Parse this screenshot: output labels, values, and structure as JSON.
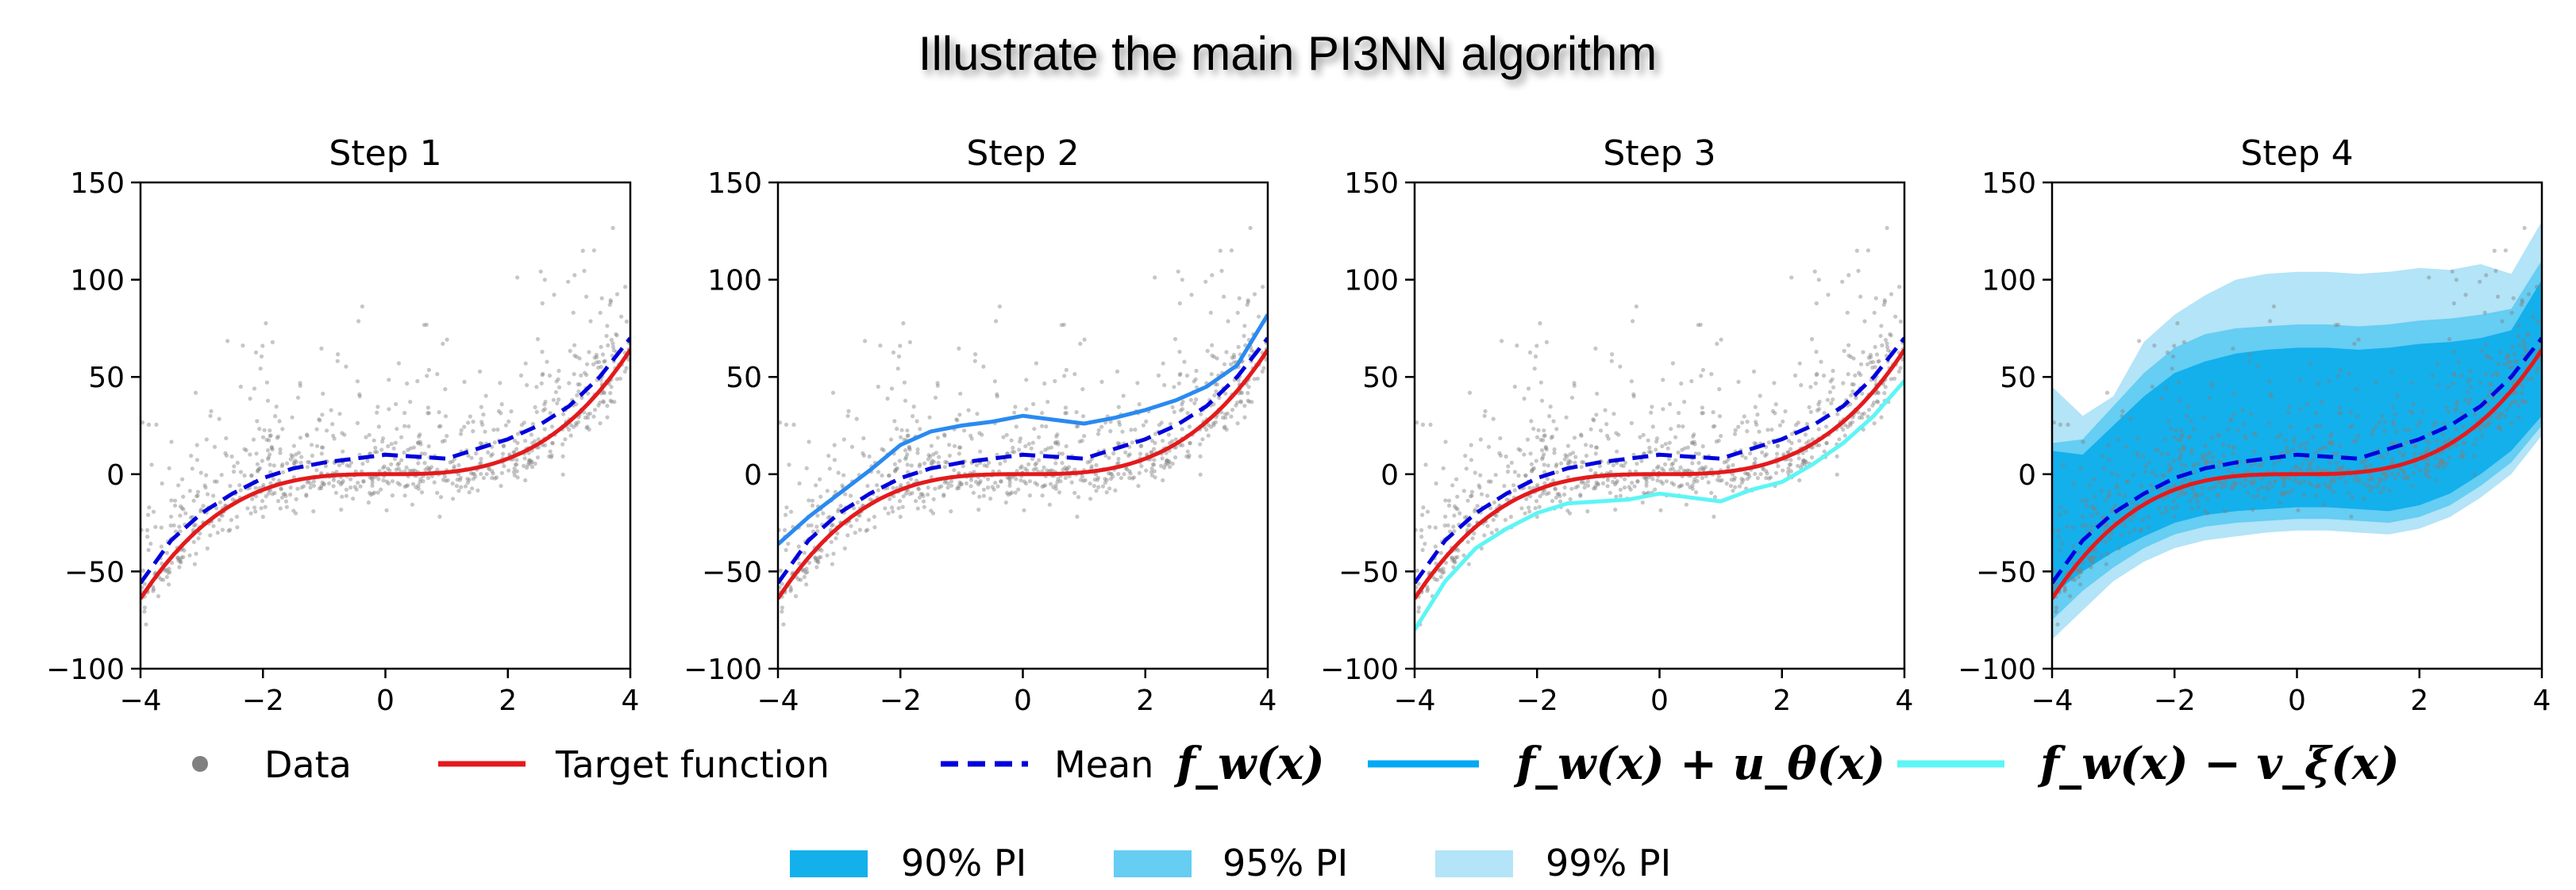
{
  "title": "Illustrate the main PI3NN algorithm",
  "colors": {
    "data": "#808080",
    "target": "#e41a1c",
    "mean": "#0000dd",
    "upper": "#2a8af0",
    "upper_legend": "#03a9f4",
    "lower": "#5ef5f5",
    "pi90": "#13b0ec",
    "pi95": "#66cdf3",
    "pi99": "#b3e4f7"
  },
  "legend": {
    "data": "Data",
    "target": "Target function",
    "mean_prefix": "Mean",
    "mean_math": "f_w(x)",
    "upper_math": "f_w(x) + u_θ(x)",
    "lower_math": "f_w(x) − v_ξ(x)",
    "pi90": "90% PI",
    "pi95": "95% PI",
    "pi99": "99% PI"
  },
  "chart_data": [
    {
      "type": "line",
      "title": "Step 1",
      "xlim": [
        -4,
        4
      ],
      "ylim": [
        -100,
        150
      ],
      "xticks": [
        "−4",
        "−2",
        "0",
        "2",
        "4"
      ],
      "yticks": [
        "−100",
        "−50",
        "0",
        "50",
        "100",
        "150"
      ],
      "x": [
        -4,
        -3.5,
        -3,
        -2.5,
        -2,
        -1.5,
        -1,
        -0.5,
        0,
        0.5,
        1,
        1.5,
        2,
        2.5,
        3,
        3.5,
        4
      ],
      "series": [
        {
          "key": "target",
          "values": [
            -64,
            -43,
            -27,
            -16,
            -8,
            -3,
            -1,
            0,
            0,
            0,
            1,
            3,
            8,
            16,
            27,
            43,
            64
          ]
        },
        {
          "key": "mean",
          "values": [
            -56,
            -34,
            -20,
            -10,
            -2,
            3,
            6,
            8,
            10,
            9,
            8,
            13,
            18,
            25,
            35,
            50,
            70
          ]
        }
      ],
      "scatter": true
    },
    {
      "type": "line",
      "title": "Step 2",
      "xlim": [
        -4,
        4
      ],
      "ylim": [
        -100,
        150
      ],
      "xticks": [
        "−4",
        "−2",
        "0",
        "2",
        "4"
      ],
      "yticks": [
        "−100",
        "−50",
        "0",
        "50",
        "100",
        "150"
      ],
      "x": [
        -4,
        -3.5,
        -3,
        -2.5,
        -2,
        -1.5,
        -1,
        -0.5,
        0,
        0.5,
        1,
        1.5,
        2,
        2.5,
        3,
        3.5,
        4
      ],
      "series": [
        {
          "key": "target",
          "values": [
            -64,
            -43,
            -27,
            -16,
            -8,
            -3,
            -1,
            0,
            0,
            0,
            1,
            3,
            8,
            16,
            27,
            43,
            64
          ]
        },
        {
          "key": "mean",
          "values": [
            -56,
            -34,
            -20,
            -10,
            -2,
            3,
            6,
            8,
            10,
            9,
            8,
            13,
            18,
            25,
            35,
            50,
            70
          ]
        },
        {
          "key": "upper",
          "values": [
            -36,
            -22,
            -10,
            2,
            15,
            22,
            25,
            27,
            30,
            28,
            26,
            29,
            33,
            38,
            45,
            56,
            82
          ]
        }
      ],
      "scatter": true
    },
    {
      "type": "line",
      "title": "Step 3",
      "xlim": [
        -4,
        4
      ],
      "ylim": [
        -100,
        150
      ],
      "xticks": [
        "−4",
        "−2",
        "0",
        "2",
        "4"
      ],
      "yticks": [
        "−100",
        "−50",
        "0",
        "50",
        "100",
        "150"
      ],
      "x": [
        -4,
        -3.5,
        -3,
        -2.5,
        -2,
        -1.5,
        -1,
        -0.5,
        0,
        0.5,
        1,
        1.5,
        2,
        2.5,
        3,
        3.5,
        4
      ],
      "series": [
        {
          "key": "target",
          "values": [
            -64,
            -43,
            -27,
            -16,
            -8,
            -3,
            -1,
            0,
            0,
            0,
            1,
            3,
            8,
            16,
            27,
            43,
            64
          ]
        },
        {
          "key": "mean",
          "values": [
            -56,
            -34,
            -20,
            -10,
            -2,
            3,
            6,
            8,
            10,
            9,
            8,
            13,
            18,
            25,
            35,
            50,
            70
          ]
        },
        {
          "key": "lower",
          "values": [
            -80,
            -55,
            -38,
            -28,
            -20,
            -15,
            -14,
            -13,
            -10,
            -12,
            -14,
            -8,
            -4,
            5,
            16,
            30,
            48
          ]
        }
      ],
      "scatter": true
    },
    {
      "type": "area",
      "title": "Step 4",
      "xlim": [
        -4,
        4
      ],
      "ylim": [
        -100,
        150
      ],
      "xticks": [
        "−4",
        "−2",
        "0",
        "2",
        "4"
      ],
      "yticks": [
        "−100",
        "−50",
        "0",
        "50",
        "100",
        "150"
      ],
      "x": [
        -4,
        -3.5,
        -3,
        -2.5,
        -2,
        -1.5,
        -1,
        -0.5,
        0,
        0.5,
        1,
        1.5,
        2,
        2.5,
        3,
        3.5,
        4
      ],
      "bands": [
        {
          "key": "pi99",
          "upper": [
            45,
            30,
            40,
            68,
            82,
            92,
            100,
            103,
            104,
            104,
            103,
            104,
            106,
            105,
            108,
            103,
            130
          ],
          "lower": [
            -85,
            -70,
            -55,
            -45,
            -38,
            -34,
            -32,
            -30,
            -29,
            -29,
            -30,
            -31,
            -28,
            -22,
            -12,
            0,
            20
          ]
        },
        {
          "key": "pi95",
          "upper": [
            16,
            18,
            35,
            52,
            65,
            72,
            75,
            76,
            77,
            77,
            76,
            77,
            79,
            80,
            82,
            85,
            110
          ]
        },
        {
          "key": "pi90",
          "upper": [
            12,
            10,
            25,
            40,
            52,
            58,
            62,
            64,
            65,
            65,
            64,
            65,
            67,
            68,
            70,
            74,
            100
          ],
          "lower": [
            -62,
            -50,
            -40,
            -32,
            -25,
            -21,
            -19,
            -18,
            -17,
            -17,
            -18,
            -19,
            -16,
            -10,
            0,
            12,
            30
          ]
        }
      ],
      "bands_lower95": [
        -75,
        -60,
        -48,
        -38,
        -31,
        -27,
        -25,
        -24,
        -23,
        -23,
        -24,
        -25,
        -22,
        -16,
        -6,
        6,
        25
      ],
      "series": [
        {
          "key": "target",
          "values": [
            -64,
            -43,
            -27,
            -16,
            -8,
            -3,
            -1,
            0,
            0,
            0,
            1,
            3,
            8,
            16,
            27,
            43,
            64
          ]
        },
        {
          "key": "mean",
          "values": [
            -56,
            -34,
            -20,
            -10,
            -2,
            3,
            6,
            8,
            10,
            9,
            8,
            13,
            18,
            25,
            35,
            50,
            70
          ]
        }
      ],
      "scatter": true
    }
  ]
}
